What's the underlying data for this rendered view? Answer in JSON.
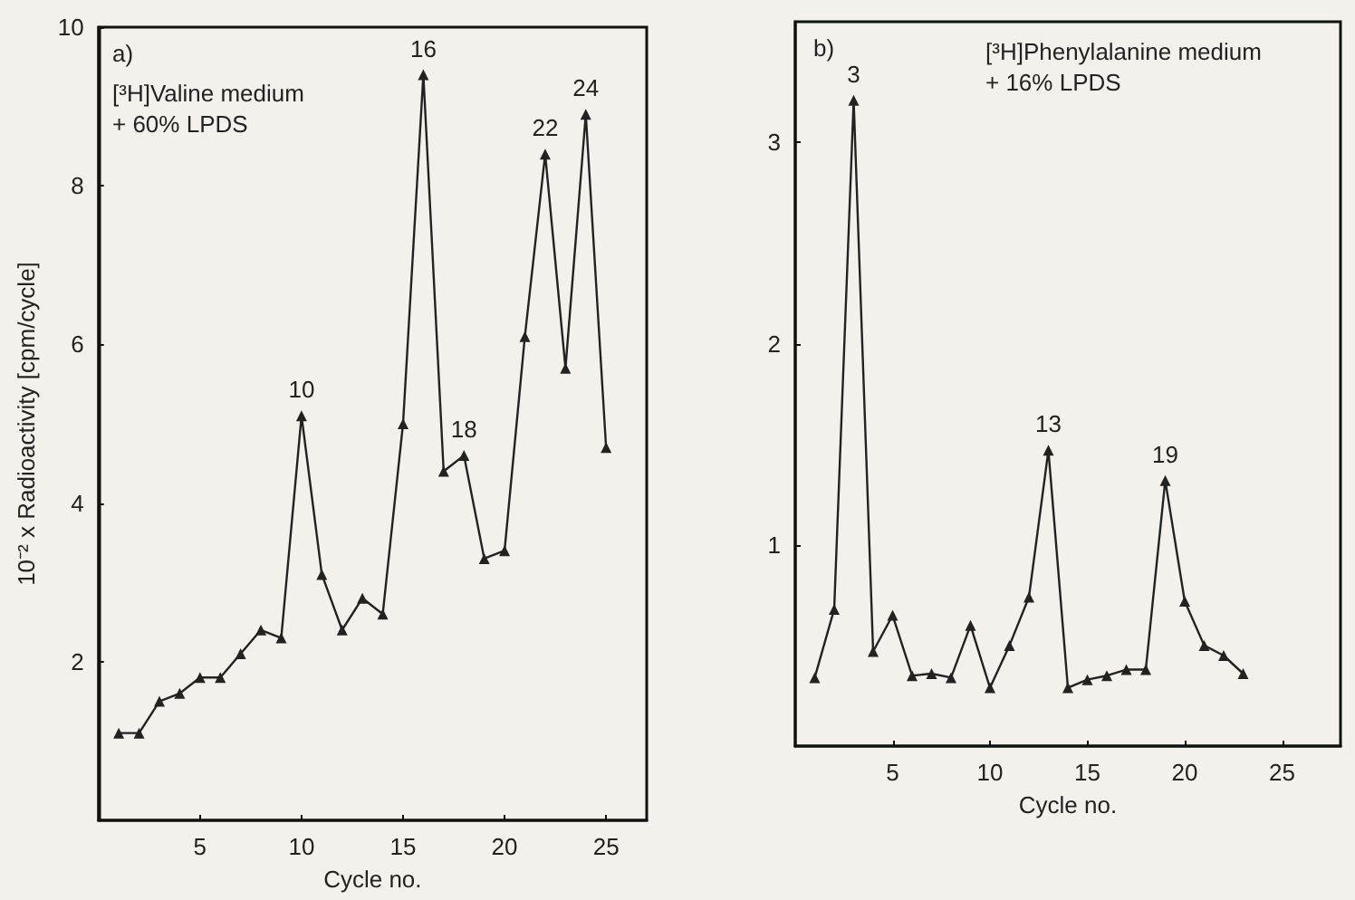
{
  "chart_data": [
    {
      "type": "line",
      "xlabel": "Cycle no.",
      "ylabel": "10⁻² x Radioactivity [cpm/cycle]",
      "annotations": [
        "a)",
        "[³H]Valine medium",
        "+ 60% LPDS",
        {
          "text": "10",
          "x": 10,
          "y": 5.1
        },
        {
          "text": "16",
          "x": 16,
          "y": 9.4
        },
        {
          "text": "18",
          "x": 18,
          "y": 4.6
        },
        {
          "text": "22",
          "x": 22,
          "y": 8.4
        },
        {
          "text": "24",
          "x": 24,
          "y": 8.9
        }
      ],
      "x": [
        1,
        2,
        3,
        4,
        5,
        6,
        7,
        8,
        9,
        10,
        11,
        12,
        13,
        14,
        15,
        16,
        17,
        18,
        19,
        20,
        21,
        22,
        23,
        24,
        25
      ],
      "series": [
        {
          "color": "#222222",
          "values": [
            1.1,
            1.1,
            1.5,
            1.6,
            1.8,
            1.8,
            2.1,
            2.4,
            2.3,
            5.1,
            3.1,
            2.4,
            2.8,
            2.6,
            5.0,
            9.4,
            4.4,
            4.6,
            3.3,
            3.4,
            6.1,
            8.4,
            5.7,
            8.9,
            4.7
          ]
        }
      ],
      "xlim": [
        0,
        27
      ],
      "xticks": [
        5,
        10,
        15,
        20,
        25
      ],
      "ylim": [
        0,
        10
      ],
      "yticks": [
        2,
        4,
        6,
        8,
        10
      ],
      "grid": false,
      "marker": "triangle",
      "line_style": "solid"
    },
    {
      "type": "line",
      "xlabel": "Cycle no.",
      "annotations": [
        "b)",
        "[³H]Phenylalanine medium",
        "+ 16% LPDS",
        {
          "text": "3",
          "x": 3,
          "y": 3.21
        },
        {
          "text": "13",
          "x": 13,
          "y": 1.47
        },
        {
          "text": "19",
          "x": 19,
          "y": 1.32
        }
      ],
      "x": [
        1,
        2,
        3,
        4,
        5,
        6,
        7,
        8,
        9,
        10,
        11,
        12,
        13,
        14,
        15,
        16,
        17,
        18,
        19,
        20,
        21,
        22,
        23
      ],
      "series": [
        {
          "color": "#222222",
          "values": [
            0.34,
            0.68,
            3.21,
            0.47,
            0.65,
            0.35,
            0.36,
            0.34,
            0.6,
            0.29,
            0.5,
            0.74,
            1.47,
            0.29,
            0.33,
            0.35,
            0.38,
            0.38,
            1.32,
            0.72,
            0.5,
            0.45,
            0.36
          ]
        }
      ],
      "xlim": [
        0,
        28
      ],
      "xticks": [
        5,
        10,
        15,
        20,
        25
      ],
      "ylim": [
        0,
        3.6
      ],
      "yticks": [
        1,
        2,
        3
      ],
      "grid": false,
      "marker": "triangle",
      "line_style": "solid"
    }
  ]
}
